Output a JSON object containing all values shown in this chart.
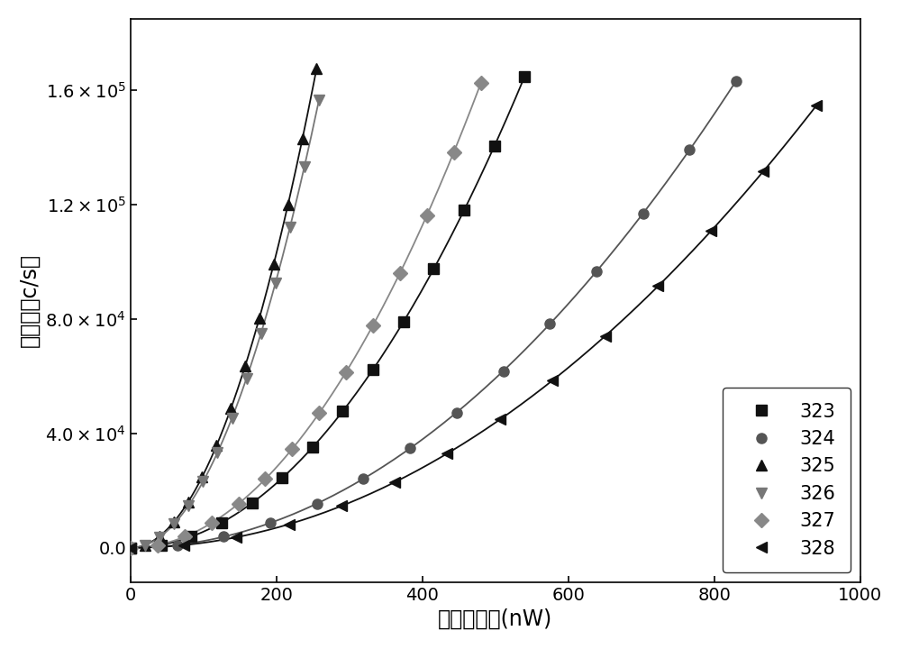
{
  "title": "",
  "xlabel": "泵浦光功率(nW)",
  "ylabel": "计数率（c/s）",
  "xlim": [
    0,
    1000
  ],
  "ylim": [
    -12000,
    185000
  ],
  "yticks": [
    0,
    40000,
    80000,
    120000,
    160000
  ],
  "xticks": [
    0,
    200,
    400,
    600,
    800,
    1000
  ],
  "line_width": 1.3,
  "legend_loc": "lower right",
  "legend_fontsize": 15,
  "tick_fontsize": 14,
  "label_fontsize": 17,
  "figure_bg": "#ffffff",
  "axes_bg": "#ffffff",
  "series": [
    {
      "label": "323",
      "color": "#111111",
      "marker": "s",
      "x_end": 540,
      "n_pts": 28,
      "coeff": 0.565
    },
    {
      "label": "324",
      "color": "#555555",
      "marker": "o",
      "x_end": 830,
      "n_pts": 28,
      "coeff": 0.237
    },
    {
      "label": "325",
      "color": "#111111",
      "marker": "^",
      "x_end": 255,
      "n_pts": 14,
      "coeff": 2.58
    },
    {
      "label": "326",
      "color": "#777777",
      "marker": "v",
      "x_end": 258,
      "n_pts": 14,
      "coeff": 2.35
    },
    {
      "label": "327",
      "color": "#888888",
      "marker": "D",
      "x_end": 480,
      "n_pts": 20,
      "coeff": 0.705
    },
    {
      "label": "328",
      "color": "#111111",
      "marker": "<",
      "x_end": 940,
      "n_pts": 28,
      "coeff": 0.175
    }
  ]
}
